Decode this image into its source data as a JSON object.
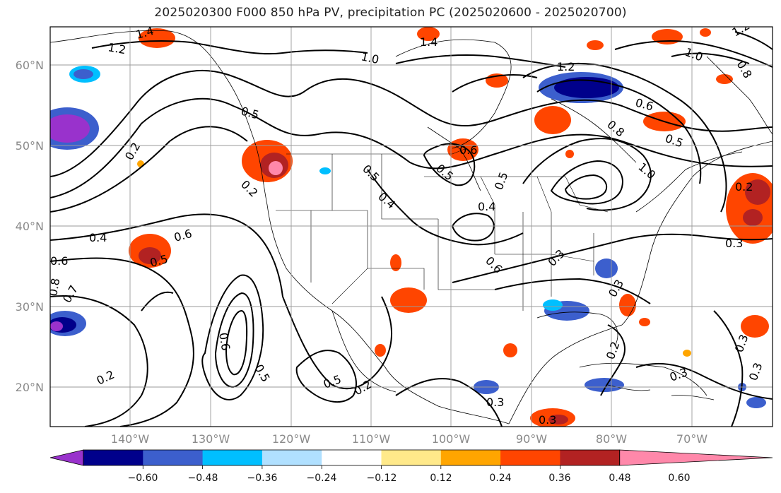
{
  "title": "2025020300 F000 850 hPa PV, precipitation PC (2025020600 - 2025020700)",
  "map": {
    "lat_ticks": [
      "60°N",
      "50°N",
      "40°N",
      "30°N",
      "20°N"
    ],
    "lon_ticks": [
      "140°W",
      "130°W",
      "120°W",
      "110°W",
      "100°W",
      "90°W",
      "80°W",
      "70°W"
    ],
    "gridlines": true,
    "contour_field": "850 hPa PV",
    "shaded_field": "precipitation PC",
    "contour_labels": [
      "1.4",
      "1.2",
      "1.4",
      "1.0",
      "1.2",
      "1.0",
      "1.2",
      "0.8",
      "0.5",
      "0.2",
      "0.2",
      "0.5",
      "0.4",
      "0.5",
      "0.6",
      "0.4",
      "0.5",
      "0.6",
      "0.5",
      "0.6",
      "0.7",
      "0.8",
      "0.2",
      "0.5",
      "0.2",
      "0.6",
      "0.5",
      "0.4",
      "0.6",
      "0.8",
      "1.0",
      "0.3",
      "0.3",
      "0.3",
      "0.2",
      "0.3",
      "0.3",
      "0.3",
      "0.3",
      "0.3",
      "0.6",
      "0.5",
      "0.2"
    ]
  },
  "colorbar": {
    "ticks": [
      "−0.60",
      "−0.48",
      "−0.36",
      "−0.24",
      "−0.12",
      "0.12",
      "0.24",
      "0.36",
      "0.48",
      "0.60"
    ],
    "colors": [
      "#9932cc",
      "#00008b",
      "#3c5fcd",
      "#00bfff",
      "#b0e0ff",
      "#ffffff",
      "#ffe98a",
      "#ffa500",
      "#ff4500",
      "#b22222",
      "#ff88aa"
    ]
  }
}
